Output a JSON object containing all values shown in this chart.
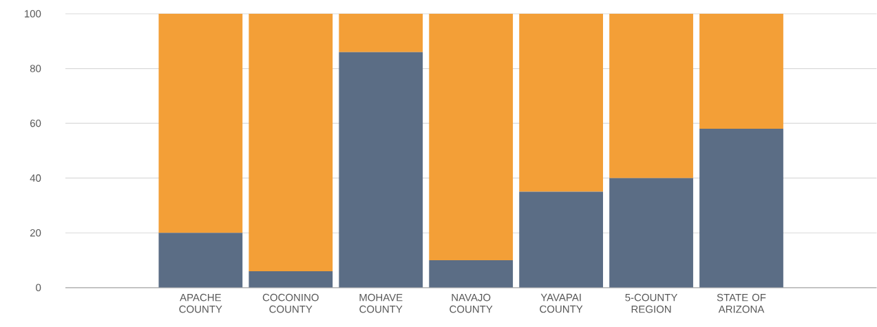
{
  "chart_data": {
    "type": "bar",
    "stacked": true,
    "categories": [
      null,
      "APACHE COUNTY",
      "COCONINO COUNTY",
      "MOHAVE COUNTY",
      "NAVAJO COUNTY",
      "YAVAPAI COUNTY",
      "5-COUNTY REGION",
      "STATE OF ARIZONA",
      null
    ],
    "series": [
      {
        "color": "#5b6d85",
        "values": [
          null,
          20,
          6,
          86,
          10,
          35,
          40,
          58,
          null
        ]
      },
      {
        "color": "#f39f37",
        "values": [
          null,
          80,
          94,
          14,
          90,
          65,
          60,
          42,
          null
        ]
      }
    ],
    "ylim": [
      0,
      100
    ],
    "yticks": [
      0,
      20,
      40,
      60,
      80,
      100
    ],
    "grid": "y"
  }
}
